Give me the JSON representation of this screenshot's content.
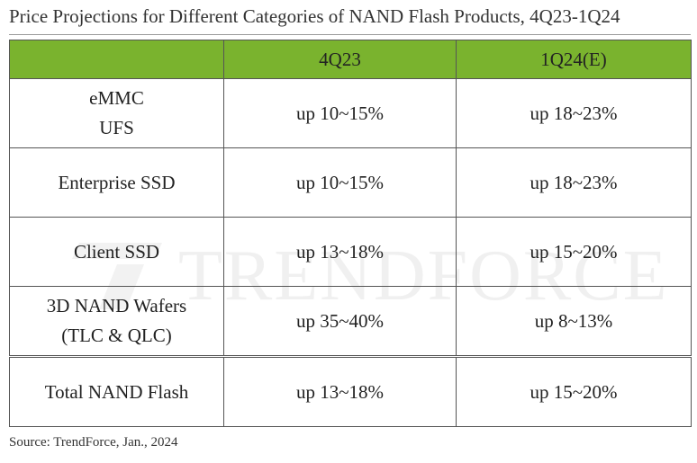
{
  "title": "Price Projections for Different Categories of NAND Flash Products, 4Q23-1Q24",
  "source": "Source: TrendForce, Jan., 2024",
  "watermark": "TRENDFORCE",
  "colors": {
    "header_green": "#7ab32e",
    "border": "#555555"
  },
  "chart_data": {
    "type": "table",
    "title": "Price Projections for Different Categories of NAND Flash Products, 4Q23-1Q24",
    "columns": [
      "",
      "4Q23",
      "1Q24(E)"
    ],
    "rows": [
      {
        "category": [
          "eMMC",
          "UFS"
        ],
        "q4_23": "up 10~15%",
        "q1_24": "up 18~23%"
      },
      {
        "category": [
          "Enterprise SSD"
        ],
        "q4_23": "up 10~15%",
        "q1_24": "up 18~23%"
      },
      {
        "category": [
          "Client SSD"
        ],
        "q4_23": "up 13~18%",
        "q1_24": "up 15~20%"
      },
      {
        "category": [
          "3D NAND Wafers",
          "(TLC & QLC)"
        ],
        "q4_23": "up 35~40%",
        "q1_24": "up 8~13%"
      },
      {
        "category": [
          "Total NAND Flash"
        ],
        "q4_23": "up 13~18%",
        "q1_24": "up 15~20%"
      }
    ]
  }
}
